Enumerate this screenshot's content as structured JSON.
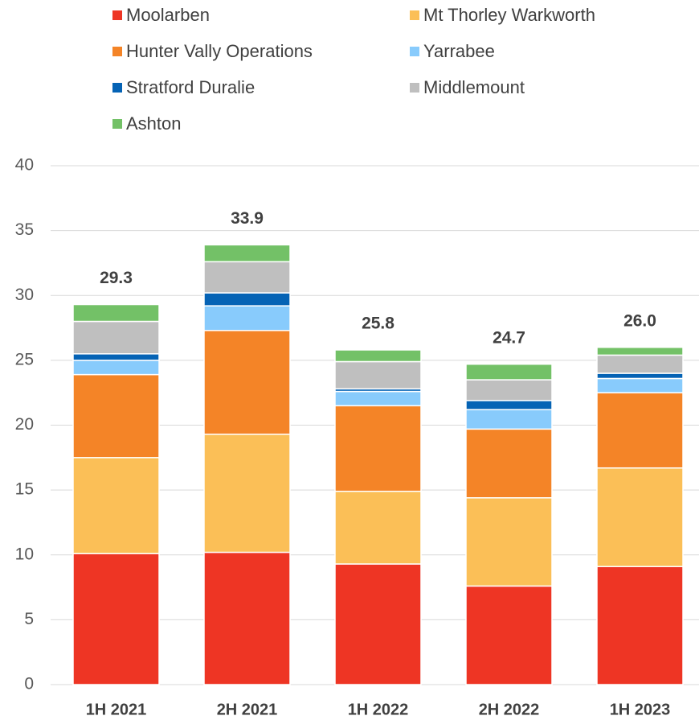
{
  "chart_data": {
    "type": "stacked_bar",
    "categories": [
      "1H 2021",
      "2H 2021",
      "1H 2022",
      "2H 2022",
      "1H 2023"
    ],
    "series": [
      {
        "name": "Moolarben",
        "color": "#ee3524",
        "values": [
          10.1,
          10.2,
          9.3,
          7.6,
          9.1
        ]
      },
      {
        "name": "Mt Thorley Warkworth",
        "color": "#fbbf57",
        "values": [
          7.4,
          9.1,
          5.6,
          6.8,
          7.6
        ]
      },
      {
        "name": "Hunter Vally Operations",
        "color": "#f48427",
        "values": [
          6.4,
          8.0,
          6.6,
          5.3,
          5.8
        ]
      },
      {
        "name": "Yarrabee",
        "color": "#88cbfc",
        "values": [
          1.1,
          1.9,
          1.1,
          1.5,
          1.1
        ]
      },
      {
        "name": "Stratford Duralie",
        "color": "#0563b5",
        "values": [
          0.5,
          1.0,
          0.2,
          0.7,
          0.4
        ]
      },
      {
        "name": "Middlemount",
        "color": "#bfbfbf",
        "values": [
          2.5,
          2.4,
          2.1,
          1.6,
          1.4
        ]
      },
      {
        "name": "Ashton",
        "color": "#73c167",
        "values": [
          1.3,
          1.3,
          0.9,
          1.2,
          0.6
        ]
      }
    ],
    "totals": [
      29.3,
      33.9,
      25.8,
      24.7,
      26.0
    ],
    "total_labels": [
      "29.3",
      "33.9",
      "25.8",
      "24.7",
      "26.0"
    ],
    "ylim": [
      0,
      40
    ],
    "yticks": [
      0,
      5,
      10,
      15,
      20,
      25,
      30,
      35,
      40
    ],
    "grid": true
  }
}
